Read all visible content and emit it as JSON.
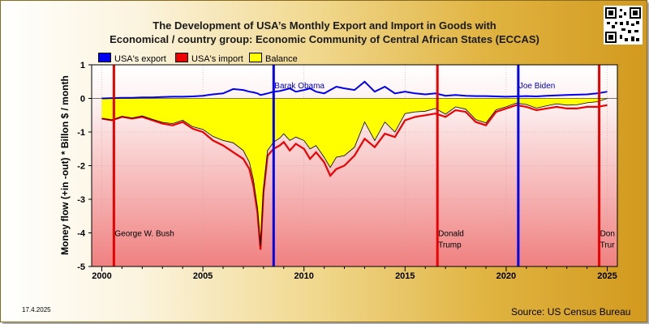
{
  "title_line1": "The Development of USA’s Monthly Export and Import in Goods with",
  "title_line2": "Economical / country group: Economic Community of Central African States (ECCAS)",
  "source": "Source: US Census Bureau",
  "date": "17.4.2025",
  "colors": {
    "export": "#0000ee",
    "import": "#ee0000",
    "balance": "#ffff00"
  },
  "chart_data": {
    "type": "line",
    "title": "The Development of USA’s Monthly Export and Import in Goods with Economical / country group: Economic Community of Central African States (ECCAS)",
    "ylabel": "Money flow (+in -out) * Billon $ / month",
    "xlabel": "",
    "xlim": [
      1999.5,
      2025.5
    ],
    "ylim": [
      -5,
      1
    ],
    "x_ticks": [
      2000,
      2005,
      2010,
      2015,
      2020,
      2025
    ],
    "y_ticks": [
      1,
      0,
      -1,
      -2,
      -3,
      -4,
      -5
    ],
    "legend": [
      "USA's export",
      "USA's import",
      "Balance"
    ],
    "legend_position": "top-left",
    "x": [
      2000.0,
      2000.5,
      2001.0,
      2001.5,
      2002.0,
      2002.5,
      2003.0,
      2003.5,
      2004.0,
      2004.5,
      2005.0,
      2005.5,
      2006.0,
      2006.5,
      2007.0,
      2007.3,
      2007.5,
      2007.7,
      2007.85,
      2008.0,
      2008.2,
      2008.5,
      2008.8,
      2009.0,
      2009.3,
      2009.6,
      2010.0,
      2010.3,
      2010.6,
      2011.0,
      2011.3,
      2011.6,
      2012.0,
      2012.5,
      2013.0,
      2013.5,
      2014.0,
      2014.5,
      2015.0,
      2015.5,
      2016.0,
      2016.5,
      2017.0,
      2017.5,
      2018.0,
      2018.5,
      2019.0,
      2019.5,
      2020.0,
      2020.5,
      2021.0,
      2021.5,
      2022.0,
      2022.5,
      2023.0,
      2023.5,
      2024.0,
      2024.5,
      2025.0
    ],
    "series": [
      {
        "name": "USA's export",
        "values": [
          0.0,
          0.01,
          0.02,
          0.02,
          0.03,
          0.03,
          0.04,
          0.05,
          0.05,
          0.06,
          0.08,
          0.12,
          0.15,
          0.28,
          0.25,
          0.2,
          0.18,
          0.15,
          0.1,
          0.12,
          0.15,
          0.2,
          0.22,
          0.25,
          0.3,
          0.2,
          0.25,
          0.3,
          0.2,
          0.15,
          0.25,
          0.35,
          0.3,
          0.25,
          0.5,
          0.2,
          0.35,
          0.15,
          0.2,
          0.15,
          0.12,
          0.15,
          0.08,
          0.1,
          0.08,
          0.07,
          0.07,
          0.06,
          0.05,
          0.06,
          0.07,
          0.06,
          0.08,
          0.09,
          0.1,
          0.11,
          0.12,
          0.15,
          0.2
        ]
      },
      {
        "name": "USA's import",
        "values": [
          -0.6,
          -0.65,
          -0.55,
          -0.6,
          -0.55,
          -0.65,
          -0.75,
          -0.8,
          -0.7,
          -0.9,
          -1.0,
          -1.25,
          -1.4,
          -1.6,
          -1.8,
          -2.1,
          -2.6,
          -3.4,
          -4.5,
          -2.8,
          -1.7,
          -1.5,
          -1.4,
          -1.3,
          -1.55,
          -1.35,
          -1.5,
          -1.8,
          -1.6,
          -1.9,
          -2.3,
          -2.1,
          -2.0,
          -1.7,
          -1.2,
          -1.45,
          -1.05,
          -1.15,
          -0.65,
          -0.55,
          -0.5,
          -0.45,
          -0.55,
          -0.35,
          -0.4,
          -0.7,
          -0.8,
          -0.4,
          -0.3,
          -0.2,
          -0.25,
          -0.35,
          -0.3,
          -0.25,
          -0.3,
          -0.3,
          -0.25,
          -0.25,
          -0.2
        ]
      },
      {
        "name": "Balance",
        "values": [
          -0.6,
          -0.64,
          -0.53,
          -0.58,
          -0.52,
          -0.62,
          -0.71,
          -0.75,
          -0.65,
          -0.84,
          -0.92,
          -1.13,
          -1.25,
          -1.32,
          -1.55,
          -1.9,
          -2.42,
          -3.25,
          -4.4,
          -2.68,
          -1.55,
          -1.3,
          -1.18,
          -1.05,
          -1.25,
          -1.15,
          -1.25,
          -1.5,
          -1.4,
          -1.75,
          -2.05,
          -1.75,
          -1.7,
          -1.45,
          -0.7,
          -1.25,
          -0.7,
          -1.0,
          -0.45,
          -0.4,
          -0.38,
          -0.3,
          -0.47,
          -0.25,
          -0.32,
          -0.63,
          -0.73,
          -0.34,
          -0.25,
          -0.14,
          -0.18,
          -0.29,
          -0.22,
          -0.16,
          -0.2,
          -0.19,
          -0.13,
          -0.1,
          0.0
        ]
      }
    ],
    "annotations": [
      {
        "x": 2000.6,
        "label": "George W. Bush",
        "label_lines": [
          "George W. Bush"
        ],
        "color": "#ee0000",
        "label_y": -4
      },
      {
        "x": 2008.5,
        "label": "Barak Obama",
        "label_lines": [
          "Barak Obama"
        ],
        "color": "#0000ee",
        "label_y": 0.4
      },
      {
        "x": 2016.6,
        "label": "Donald Trump",
        "label_lines": [
          "Donald",
          "Trump"
        ],
        "color": "#ee0000",
        "label_y": -4
      },
      {
        "x": 2020.6,
        "label": "Joe Biden",
        "label_lines": [
          "Joe Biden"
        ],
        "color": "#0000ee",
        "label_y": 0.4
      },
      {
        "x": 2024.6,
        "label": "Don Trur",
        "label_lines": [
          "Don",
          "Trur"
        ],
        "color": "#ee0000",
        "label_y": -4
      }
    ]
  }
}
